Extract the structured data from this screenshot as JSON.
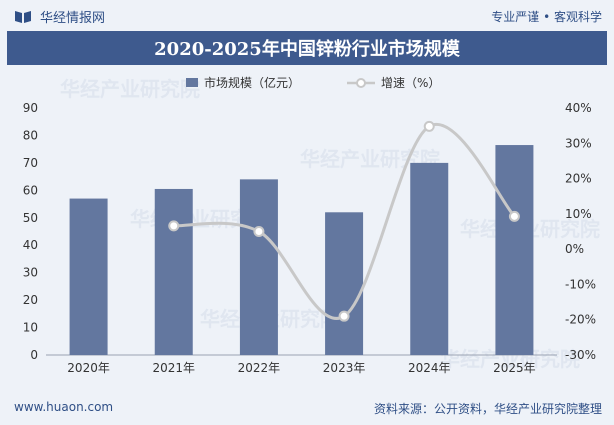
{
  "header": {
    "brand": "华经情报网",
    "slogan": "专业严谨 • 客观科学"
  },
  "footer": {
    "website": "www.huaon.com",
    "source": "资料来源：公开资料，华经产业研究院整理"
  },
  "watermark": "华经产业研究院",
  "colors": {
    "bar": "#63779f",
    "line": "#c8c8c8",
    "title_bg": "#3e5a8e",
    "brand": "#2f4f86"
  },
  "chart_data": {
    "type": "bar",
    "title": "2020-2025年中国锌粉行业市场规模",
    "categories": [
      "2020年",
      "2021年",
      "2022年",
      "2023年",
      "2024年",
      "2025年"
    ],
    "series": [
      {
        "name": "市场规模（亿元）",
        "type": "bar",
        "axis": "left",
        "values": [
          57,
          60.5,
          64,
          52,
          70,
          76.5
        ]
      },
      {
        "name": "增速（%）",
        "type": "line",
        "axis": "right",
        "values": [
          null,
          6.6,
          5.0,
          -19.0,
          34.8,
          9.3
        ]
      }
    ],
    "y_left": {
      "min": 0,
      "max": 90,
      "ticks": [
        "0",
        "10",
        "20",
        "30",
        "40",
        "50",
        "60",
        "70",
        "80",
        "90"
      ]
    },
    "y_right": {
      "min": -30,
      "max": 40,
      "ticks": [
        "-30%",
        "-20%",
        "-10%",
        "0%",
        "10%",
        "20%",
        "30%",
        "40%"
      ]
    },
    "legend_position": "top-center",
    "grid": false
  }
}
